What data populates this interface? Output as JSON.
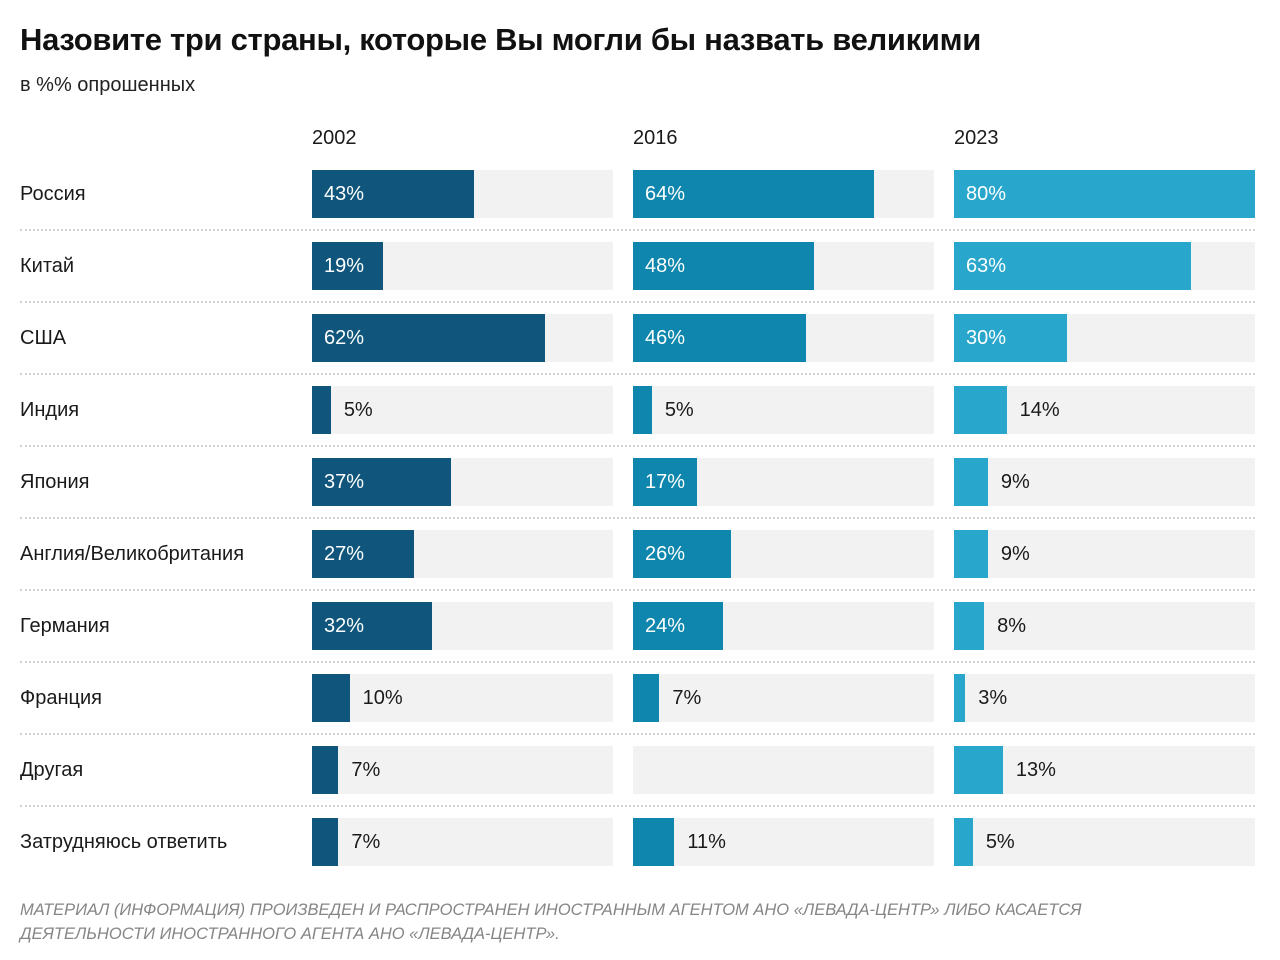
{
  "page": {
    "title": "Назовите три страны, которые Вы могли бы назвать великими",
    "subtitle": "в %% опрошенных",
    "footer": "МАТЕРИАЛ (ИНФОРМАЦИЯ) ПРОИЗВЕДЕН И РАСПРОСТРАНЕН ИНОСТРАННЫМ АГЕНТОМ АНО «ЛЕВАДА-ЦЕНТР» ЛИБО КАСАЕТСЯ ДЕЯТЕЛЬНОСТИ ИНОСТРАННОГО АГЕНТА АНО «ЛЕВАДА-ЦЕНТР»."
  },
  "colors": {
    "series": [
      "#10567c",
      "#0e86ad",
      "#29a6cc"
    ],
    "track": "#f2f2f2",
    "label_inside": "#ffffff",
    "label_outside": "#1a1a1a"
  },
  "chart_data": {
    "type": "bar",
    "orientation": "horizontal",
    "title": "Назовите три страны, которые Вы могли бы назвать великими",
    "subtitle": "в %% опрошенных",
    "value_suffix": "%",
    "scale_max": 80,
    "inside_label_threshold": 15,
    "grid": false,
    "series_labels": [
      "2002",
      "2016",
      "2023"
    ],
    "categories": [
      "Россия",
      "Китай",
      "США",
      "Индия",
      "Япония",
      "Англия/Великобритания",
      "Германия",
      "Франция",
      "Другая",
      "Затрудняюсь ответить"
    ],
    "series": [
      {
        "name": "2002",
        "values": [
          43,
          19,
          62,
          5,
          37,
          27,
          32,
          10,
          7,
          7
        ]
      },
      {
        "name": "2016",
        "values": [
          64,
          48,
          46,
          5,
          17,
          26,
          24,
          7,
          null,
          11
        ]
      },
      {
        "name": "2023",
        "values": [
          80,
          63,
          30,
          14,
          9,
          9,
          8,
          3,
          13,
          5
        ]
      }
    ]
  }
}
